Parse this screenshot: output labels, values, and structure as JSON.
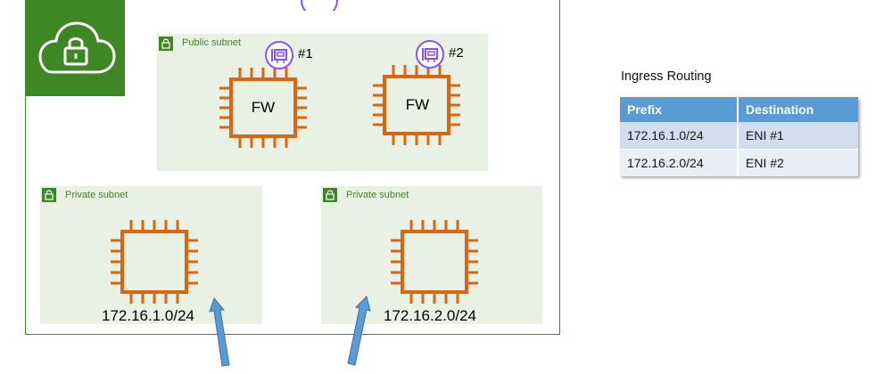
{
  "vpc": {
    "icon": "cloud-lock-icon"
  },
  "public_subnet": {
    "label": "Public subnet",
    "icon": "lock-icon",
    "firewalls": [
      {
        "label": "FW",
        "eni": "#1"
      },
      {
        "label": "FW",
        "eni": "#2"
      }
    ]
  },
  "private_subnets": [
    {
      "label": "Private subnet",
      "cidr": "172.16.1.0/24"
    },
    {
      "label": "Private subnet",
      "cidr": "172.16.2.0/24"
    }
  ],
  "ingress_routing": {
    "title": "Ingress Routing",
    "headers": [
      "Prefix",
      "Destination"
    ],
    "rows": [
      [
        "172.16.1.0/24",
        "ENI #1"
      ],
      [
        "172.16.2.0/24",
        "ENI #2"
      ]
    ]
  },
  "colors": {
    "vpc_green": "#3f8624",
    "subnet_bg": "#e9f1e4",
    "chip_orange": "#d86613",
    "eni_purple": "#8c4fff",
    "arrow_blue": "#5b9bd5",
    "table_header": "#5b9bd5"
  }
}
